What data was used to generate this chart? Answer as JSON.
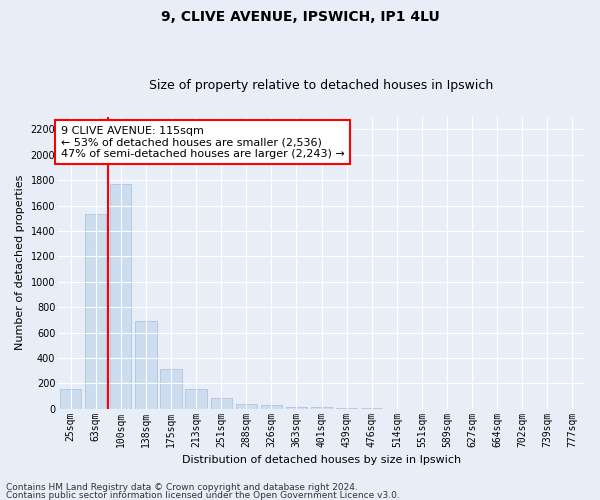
{
  "title1": "9, CLIVE AVENUE, IPSWICH, IP1 4LU",
  "title2": "Size of property relative to detached houses in Ipswich",
  "xlabel": "Distribution of detached houses by size in Ipswich",
  "ylabel": "Number of detached properties",
  "categories": [
    "25sqm",
    "63sqm",
    "100sqm",
    "138sqm",
    "175sqm",
    "213sqm",
    "251sqm",
    "288sqm",
    "326sqm",
    "363sqm",
    "401sqm",
    "439sqm",
    "476sqm",
    "514sqm",
    "551sqm",
    "589sqm",
    "627sqm",
    "664sqm",
    "702sqm",
    "739sqm",
    "777sqm"
  ],
  "values": [
    155,
    1530,
    1770,
    690,
    315,
    155,
    80,
    40,
    25,
    15,
    15,
    5,
    5,
    0,
    0,
    0,
    0,
    0,
    0,
    0,
    0
  ],
  "bar_color": "#ccddf0",
  "bar_edge_color": "#aabbd8",
  "vline_x": 1.5,
  "vline_color": "red",
  "annotation_text": "9 CLIVE AVENUE: 115sqm\n← 53% of detached houses are smaller (2,536)\n47% of semi-detached houses are larger (2,243) →",
  "annotation_box_facecolor": "white",
  "annotation_box_edgecolor": "red",
  "ylim": [
    0,
    2300
  ],
  "yticks": [
    0,
    200,
    400,
    600,
    800,
    1000,
    1200,
    1400,
    1600,
    1800,
    2000,
    2200
  ],
  "footer1": "Contains HM Land Registry data © Crown copyright and database right 2024.",
  "footer2": "Contains public sector information licensed under the Open Government Licence v3.0.",
  "background_color": "#e8eef8",
  "plot_bg_color": "#e8eef8",
  "grid_color": "white",
  "title_fontsize": 10,
  "subtitle_fontsize": 9,
  "axis_label_fontsize": 8,
  "tick_fontsize": 7,
  "annotation_fontsize": 8,
  "footer_fontsize": 6.5
}
